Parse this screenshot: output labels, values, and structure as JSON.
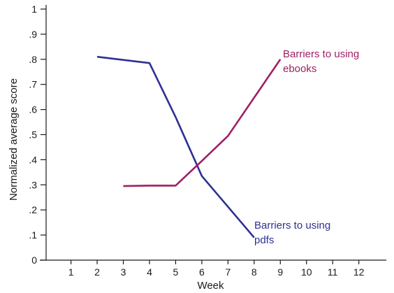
{
  "chart_data": {
    "type": "line",
    "title": "",
    "xlabel": "Week",
    "ylabel": "Normalized average score",
    "x_ticks": [
      1,
      2,
      3,
      4,
      5,
      6,
      7,
      8,
      9,
      10,
      11,
      12
    ],
    "x_tick_labels": [
      "1",
      "2",
      "3",
      "4",
      "5",
      "6",
      "7",
      "8",
      "9",
      "10",
      "11",
      "12"
    ],
    "y_ticks": [
      0,
      0.1,
      0.2,
      0.3,
      0.4,
      0.5,
      0.6,
      0.7,
      0.8,
      0.9,
      1
    ],
    "y_tick_labels": [
      "0",
      ".1",
      ".2",
      ".3",
      ".4",
      ".5",
      ".6",
      ".7",
      ".8",
      ".9",
      "1"
    ],
    "xlim": [
      0.05,
      13.05
    ],
    "ylim": [
      0,
      1
    ],
    "grid": false,
    "legend": "none",
    "series": [
      {
        "name": "Barriers to using pdfs",
        "label_lines": [
          "Barriers to using",
          "pdfs"
        ],
        "color": "#2e3192",
        "x": [
          2,
          4,
          5,
          6,
          8
        ],
        "y": [
          0.81,
          0.785,
          0.57,
          0.335,
          0.09
        ]
      },
      {
        "name": "Barriers to using ebooks",
        "label_lines": [
          "Barriers to using",
          "ebooks"
        ],
        "color": "#9e1f63",
        "x": [
          3,
          4,
          5,
          6,
          7,
          9
        ],
        "y": [
          0.295,
          0.297,
          0.297,
          0.395,
          0.495,
          0.8
        ]
      }
    ]
  }
}
